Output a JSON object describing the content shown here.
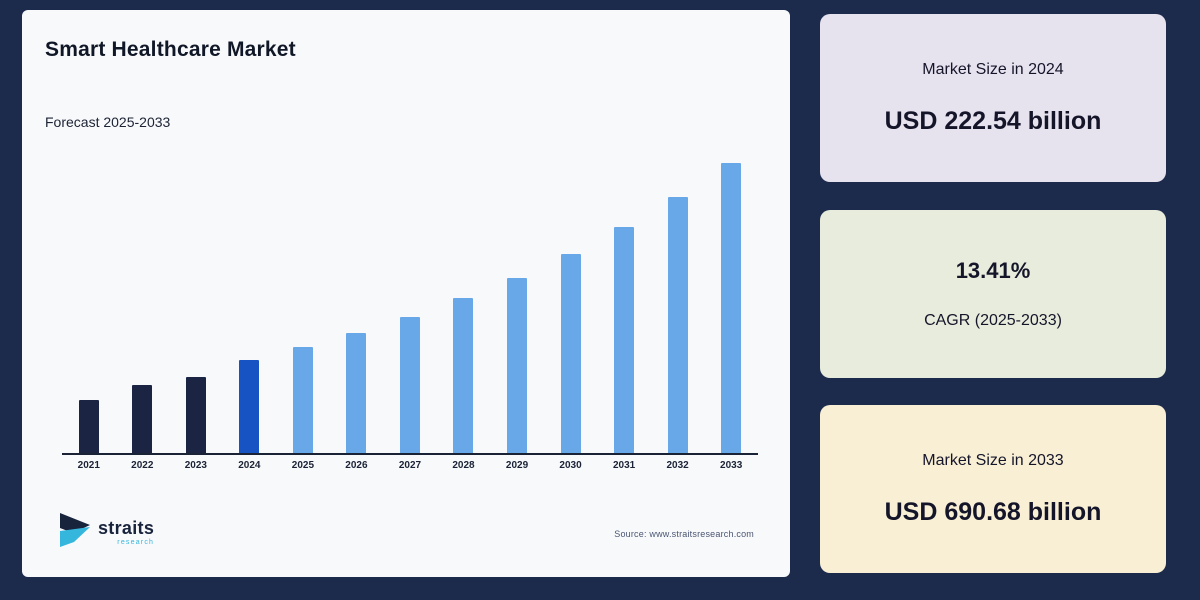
{
  "colors": {
    "page_background": "#1c2b4c",
    "chart_card_background": "#f8f9fb",
    "bar_historical": "#1b2442",
    "bar_base_year": "#1853c4",
    "bar_forecast": "#68a7e8",
    "axis": "#1a2235",
    "card_2024_background": "#e6e2ee",
    "card_cagr_background": "#e7ecdc",
    "card_2033_background": "#f8efd4",
    "logo_dark": "#18233c",
    "logo_cyan": "#35b6dd"
  },
  "chart_card": {
    "title": "Smart Healthcare Market",
    "subtitle": "Forecast 2025-2033",
    "source": "Source: www.straitsresearch.com",
    "logo": {
      "name": "straits",
      "sub": "research"
    }
  },
  "chart_data": {
    "type": "bar",
    "title": "Smart Healthcare Market",
    "subtitle": "Forecast 2025-2033",
    "xlabel": "",
    "ylabel": "",
    "unit": "USD billion",
    "categories": [
      "2021",
      "2022",
      "2023",
      "2024",
      "2025",
      "2026",
      "2027",
      "2028",
      "2029",
      "2030",
      "2031",
      "2032",
      "2033"
    ],
    "values": [
      127.2,
      162.9,
      182.1,
      222.54,
      252.38,
      286.22,
      324.6,
      368.13,
      417.49,
      473.48,
      536.97,
      608.97,
      690.68
    ],
    "segments": {
      "historical_years": [
        "2021",
        "2022",
        "2023"
      ],
      "base_year": "2024",
      "forecast_years": [
        "2025",
        "2026",
        "2027",
        "2028",
        "2029",
        "2030",
        "2031",
        "2032",
        "2033"
      ]
    },
    "ylim": [
      0,
      700
    ],
    "grid": false,
    "legend": "none",
    "y_axis_ticks": "none"
  },
  "stat_cards": [
    {
      "id": "card-2024",
      "label": "Market Size in 2024",
      "value": "USD 222.54 billion"
    },
    {
      "id": "card-cagr",
      "value": "13.41%",
      "label": "CAGR (2025-2033)"
    },
    {
      "id": "card-2033",
      "label": "Market Size in 2033",
      "value": "USD 690.68 billion"
    }
  ]
}
